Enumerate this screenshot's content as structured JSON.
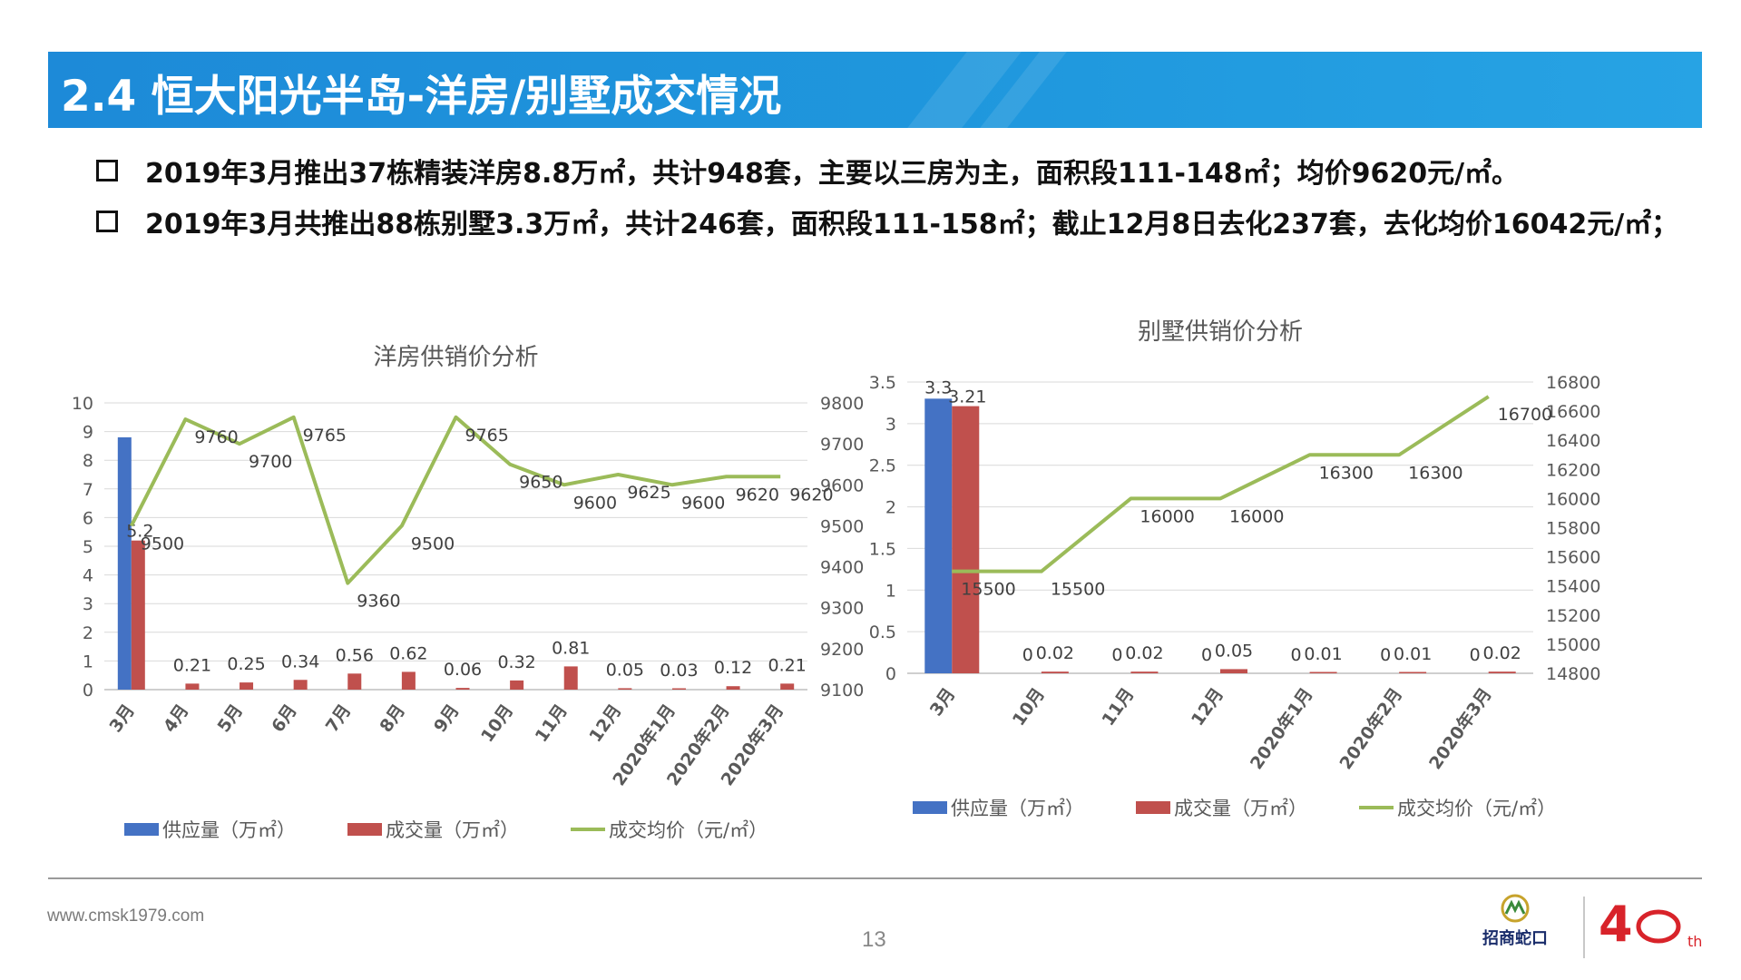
{
  "header": {
    "title": "2.4 恒大阳光半岛-洋房/别墅成交情况"
  },
  "bullets": [
    "2019年3月推出37栋精装洋房8.8万㎡，共计948套，主要以三房为主，面积段111-148㎡；均价9620元/㎡。",
    "2019年3月共推出88栋别墅3.3万㎡，共计246套，面积段111-158㎡；截止12月8日去化237套，去化均价16042元/㎡；"
  ],
  "colors": {
    "supply": "#4472c4",
    "deal": "#c0504d",
    "price": "#9bbb59",
    "title_bar": "#1f8fdb"
  },
  "chart_data": [
    {
      "type": "bar+line",
      "title": "洋房供销价分析",
      "categories": [
        "3月",
        "4月",
        "5月",
        "6月",
        "7月",
        "8月",
        "9月",
        "10月",
        "11月",
        "12月",
        "2020年1月",
        "2020年2月",
        "2020年3月"
      ],
      "series": [
        {
          "name": "供应量（万㎡）",
          "type": "bar",
          "axis": "left",
          "values": [
            8.8,
            0,
            0,
            0,
            0,
            0,
            0,
            0,
            0,
            0,
            0,
            0,
            0
          ],
          "labels": [
            null,
            null,
            null,
            null,
            null,
            null,
            null,
            null,
            null,
            null,
            null,
            null,
            null
          ]
        },
        {
          "name": "成交量（万㎡）",
          "type": "bar",
          "axis": "left",
          "values": [
            5.2,
            0.21,
            0.25,
            0.34,
            0.56,
            0.62,
            0.06,
            0.32,
            0.81,
            0.05,
            0.03,
            0.12,
            0.21
          ],
          "labels": [
            "5.2",
            "0.21",
            "0.25",
            "0.34",
            "0.56",
            "0.62",
            "0.06",
            "0.32",
            "0.81",
            "0.05",
            "0.03",
            "0.12",
            "0.21"
          ]
        },
        {
          "name": "成交均价（元/㎡）",
          "type": "line",
          "axis": "right",
          "values": [
            9500,
            9760,
            9700,
            9765,
            9360,
            9500,
            9765,
            9650,
            9600,
            9625,
            9600,
            9620,
            9620
          ],
          "labels": [
            "9500",
            "9760",
            "9700",
            "9765",
            "9360",
            "9500",
            "9765",
            "9650",
            "9600",
            "9625",
            "9600",
            "9620",
            "9620"
          ]
        }
      ],
      "ylim_left": [
        0,
        10
      ],
      "yticks_left": [
        "0",
        "1",
        "2",
        "3",
        "4",
        "5",
        "6",
        "7",
        "8",
        "9",
        "10"
      ],
      "ylim_right": [
        9100,
        9800
      ],
      "yticks_right": [
        "9100",
        "9200",
        "9300",
        "9400",
        "9500",
        "9600",
        "9700",
        "9800"
      ],
      "grid": true,
      "legend": "bottom"
    },
    {
      "type": "bar+line",
      "title": "别墅供销价分析",
      "categories": [
        "3月",
        "10月",
        "11月",
        "12月",
        "2020年1月",
        "2020年2月",
        "2020年3月"
      ],
      "series": [
        {
          "name": "供应量（万㎡）",
          "type": "bar",
          "axis": "left",
          "values": [
            3.3,
            0,
            0,
            0,
            0,
            0,
            0
          ],
          "labels": [
            "3.3",
            "0",
            "0",
            "0",
            "0",
            "0",
            "0"
          ]
        },
        {
          "name": "成交量（万㎡）",
          "type": "bar",
          "axis": "left",
          "values": [
            3.21,
            0.02,
            0.02,
            0.05,
            0.01,
            0.01,
            0.02
          ],
          "labels": [
            "3.21",
            "0.02",
            "0.02",
            "0.05",
            "0.01",
            "0.01",
            "0.02"
          ]
        },
        {
          "name": "成交均价（元/㎡）",
          "type": "line",
          "axis": "right",
          "values": [
            15500,
            15500,
            16000,
            16000,
            16300,
            16300,
            16700
          ],
          "labels": [
            "15500",
            "15500",
            "16000",
            "16000",
            "16300",
            "16300",
            "16700"
          ]
        }
      ],
      "ylim_left": [
        0,
        3.5
      ],
      "yticks_left": [
        "0",
        "0.5",
        "1",
        "1.5",
        "2",
        "2.5",
        "3",
        "3.5"
      ],
      "ylim_right": [
        14800,
        16800
      ],
      "yticks_right": [
        "14800",
        "15000",
        "15200",
        "15400",
        "15600",
        "15800",
        "16000",
        "16200",
        "16400",
        "16600",
        "16800"
      ],
      "grid": true,
      "legend": "bottom"
    }
  ],
  "footer": {
    "website": "www.cmsk1979.com",
    "page": "13",
    "logo1_text": "招商蛇口",
    "logo2_text": "th"
  }
}
